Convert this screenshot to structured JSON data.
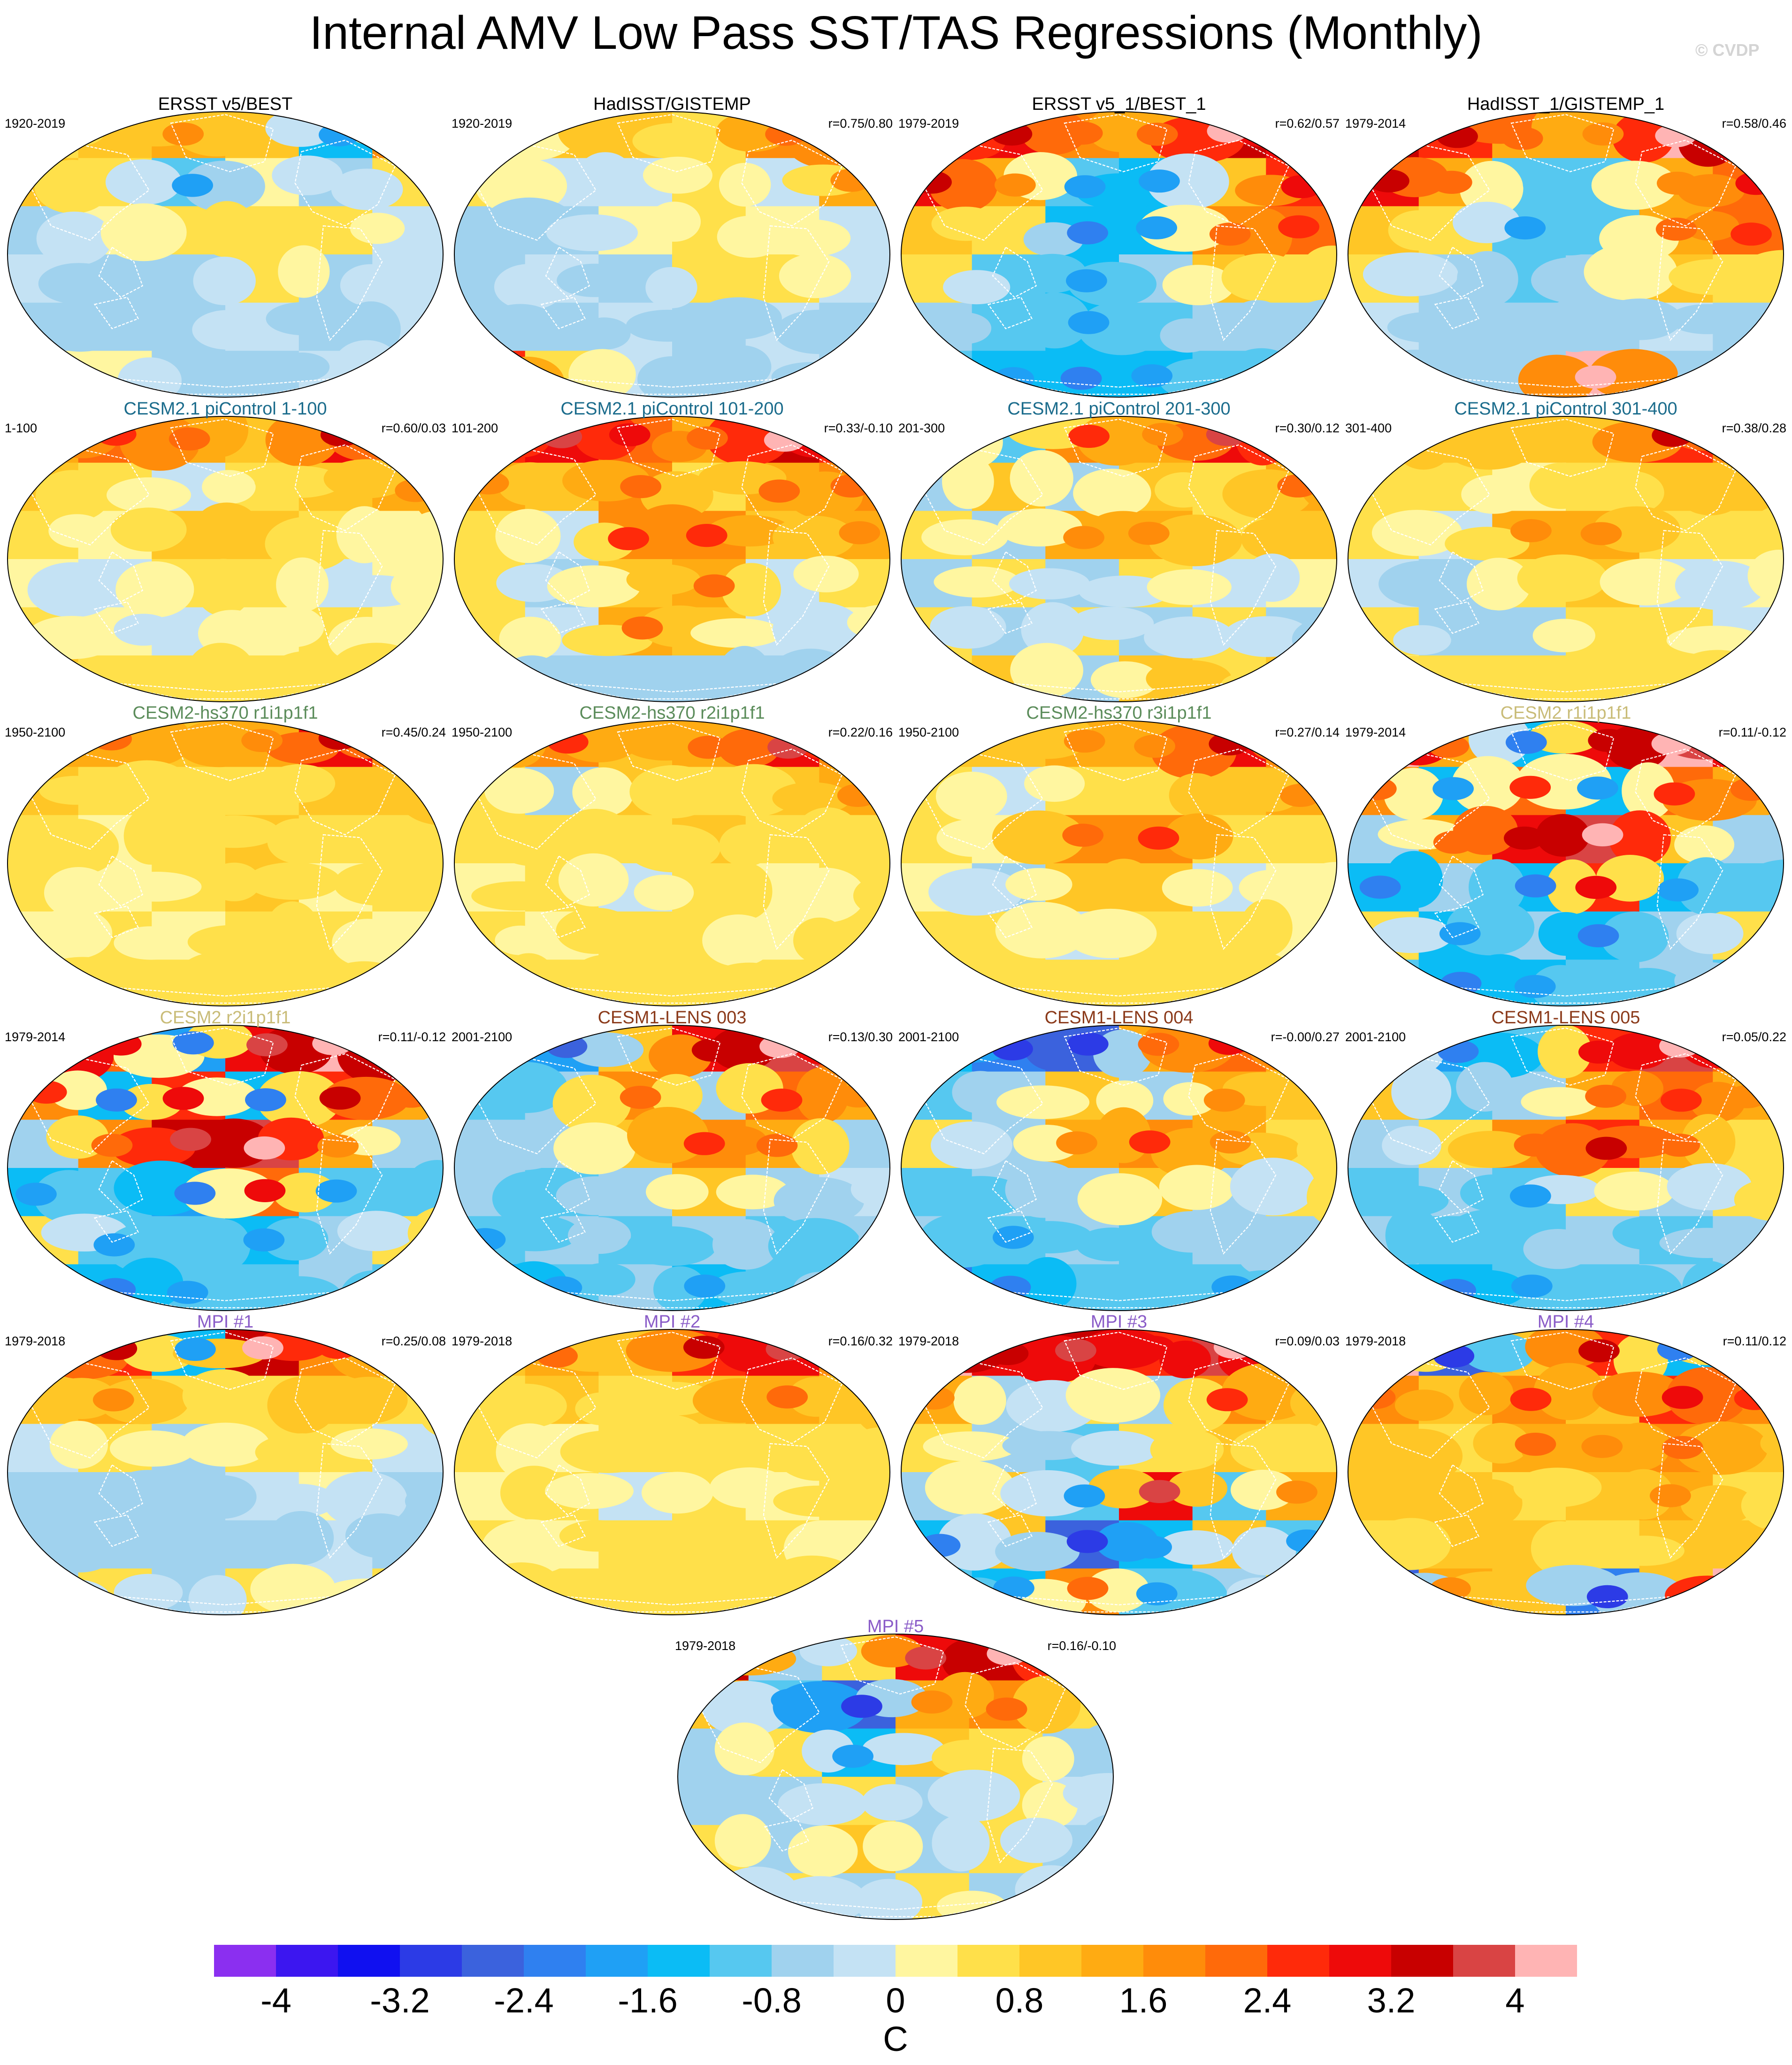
{
  "title": "Internal AMV Low Pass SST/TAS Regressions (Monthly)",
  "watermark": "© CVDP",
  "panels": [
    {
      "title": "ERSST v5/BEST",
      "title_color": "#000000",
      "period": "1920-2019",
      "corr": "",
      "pattern": [
        [
          0.6,
          0.9,
          1.3,
          1.0,
          -1.4,
          1.6
        ],
        [
          0.8,
          0.6,
          -1.2,
          0.3,
          -0.6,
          0.4
        ],
        [
          -0.6,
          0.0,
          0.6,
          0.5,
          0.6,
          -0.3
        ],
        [
          -0.4,
          -0.8,
          -0.7,
          0.5,
          -0.5,
          -0.3
        ],
        [
          -0.7,
          -0.5,
          -0.5,
          -0.3,
          -0.6,
          -0.4
        ],
        [
          0.3,
          0.0,
          -0.6,
          -0.5,
          -0.4,
          0.0
        ]
      ]
    },
    {
      "title": "HadISST/GISTEMP",
      "title_color": "#000000",
      "period": "1920-2019",
      "corr": "r=0.75/0.80",
      "pattern": [
        [
          -0.3,
          1.0,
          0.8,
          0.7,
          1.7,
          2.2
        ],
        [
          0.4,
          -0.4,
          -0.3,
          0.6,
          -0.3,
          1.3
        ],
        [
          -0.6,
          -0.5,
          0.2,
          0.4,
          0.3,
          -0.3
        ],
        [
          -0.5,
          -0.3,
          -0.6,
          0.4,
          0.5,
          -0.4
        ],
        [
          -0.5,
          -0.6,
          -0.4,
          -0.5,
          -0.4,
          -0.5
        ],
        [
          2.4,
          0.5,
          -0.4,
          -0.5,
          -0.4,
          -0.6
        ]
      ]
    },
    {
      "title": "ERSST v5_1/BEST_1",
      "title_color": "#000000",
      "period": "1979-2019",
      "corr": "r=0.62/0.57",
      "pattern": [
        [
          2.5,
          2.8,
          1.6,
          1.5,
          3.5,
          2.8
        ],
        [
          2.9,
          1.2,
          -1.2,
          -1.4,
          1.0,
          2.4
        ],
        [
          0.9,
          0.6,
          -1.6,
          -1.3,
          1.7,
          2.1
        ],
        [
          0.6,
          -1.0,
          -1.4,
          -0.8,
          0.9,
          0.6
        ],
        [
          -0.6,
          -0.9,
          -1.3,
          -1.0,
          -0.6,
          -0.8
        ],
        [
          -1.2,
          -1.4,
          -1.6,
          -1.4,
          -0.9,
          -1.0
        ]
      ]
    },
    {
      "title": "HadISST_1/GISTEMP_1",
      "title_color": "#000000",
      "period": "1979-2014",
      "corr": "r=0.58/0.46",
      "pattern": [
        [
          3.2,
          2.6,
          1.4,
          1.3,
          4.0,
          3.0
        ],
        [
          2.8,
          1.4,
          -0.9,
          -1.1,
          1.2,
          2.3
        ],
        [
          0.8,
          0.6,
          -1.2,
          -1.0,
          1.5,
          2.0
        ],
        [
          0.5,
          -0.6,
          -0.9,
          -0.6,
          0.8,
          0.5
        ],
        [
          -0.4,
          -0.6,
          -0.8,
          -0.7,
          -0.4,
          -0.5
        ],
        [
          -0.8,
          -0.6,
          -0.7,
          4.2,
          -0.6,
          -0.5
        ]
      ]
    },
    {
      "title": "CESM2.1 piControl 1-100",
      "title_color": "#1b6c8c",
      "period": "1-100",
      "corr": "r=0.60/0.03",
      "pattern": [
        [
          1.2,
          2.0,
          1.5,
          1.0,
          2.9,
          1.8
        ],
        [
          0.9,
          0.6,
          -0.3,
          0.5,
          0.9,
          1.2
        ],
        [
          0.5,
          0.2,
          0.8,
          0.9,
          0.4,
          0.3
        ],
        [
          0.3,
          -0.4,
          0.5,
          0.7,
          -0.3,
          0.2
        ],
        [
          0.4,
          0.2,
          -0.3,
          0.3,
          0.4,
          0.3
        ],
        [
          0.8,
          0.6,
          0.4,
          0.7,
          0.5,
          0.6
        ]
      ]
    },
    {
      "title": "CESM2.1 piControl 101-200",
      "title_color": "#1b6c8c",
      "period": "101-200",
      "corr": "r=0.33/-0.10",
      "pattern": [
        [
          2.4,
          3.0,
          2.2,
          1.5,
          3.4,
          2.4
        ],
        [
          1.2,
          0.8,
          1.6,
          0.6,
          1.5,
          1.6
        ],
        [
          0.5,
          -0.4,
          1.8,
          1.9,
          0.8,
          1.2
        ],
        [
          0.4,
          -0.5,
          0.9,
          1.4,
          -0.3,
          0.4
        ],
        [
          0.6,
          -0.4,
          1.5,
          0.8,
          -0.4,
          0.3
        ],
        [
          -0.8,
          -0.5,
          -0.6,
          -0.8,
          -0.7,
          -0.5
        ]
      ]
    },
    {
      "title": "CESM2.1 piControl 201-300",
      "title_color": "#1b6c8c",
      "period": "201-300",
      "corr": "r=0.30/0.12",
      "pattern": [
        [
          1.5,
          -1.0,
          1.8,
          1.3,
          3.0,
          2.0
        ],
        [
          -0.6,
          0.8,
          -0.5,
          0.9,
          0.6,
          1.4
        ],
        [
          0.6,
          -0.6,
          1.2,
          1.3,
          0.7,
          0.9
        ],
        [
          -0.5,
          0.5,
          -0.7,
          0.6,
          -0.4,
          0.3
        ],
        [
          0.5,
          -0.7,
          0.6,
          -0.8,
          0.4,
          -0.6
        ],
        [
          0.7,
          0.9,
          -0.5,
          1.0,
          0.6,
          0.8
        ]
      ]
    },
    {
      "title": "CESM2.1 piControl 301-400",
      "title_color": "#1b6c8c",
      "period": "301-400",
      "corr": "r=0.38/0.28",
      "pattern": [
        [
          0.9,
          1.1,
          1.0,
          0.8,
          2.6,
          1.6
        ],
        [
          0.6,
          0.4,
          0.3,
          0.7,
          0.8,
          1.1
        ],
        [
          0.4,
          -0.3,
          1.2,
          1.3,
          0.5,
          0.6
        ],
        [
          -0.4,
          -0.5,
          0.6,
          0.8,
          -0.3,
          0.2
        ],
        [
          0.5,
          -0.6,
          -0.5,
          0.6,
          0.4,
          -0.3
        ],
        [
          0.3,
          0.5,
          0.6,
          0.4,
          0.5,
          0.6
        ]
      ]
    },
    {
      "title": "CESM2-hs370 r1i1p1f1",
      "title_color": "#5b8c5a",
      "period": "1950-2100",
      "corr": "r=0.45/0.24",
      "pattern": [
        [
          1.4,
          1.5,
          1.1,
          1.3,
          2.8,
          1.6
        ],
        [
          0.8,
          0.5,
          0.4,
          0.6,
          0.9,
          1.0
        ],
        [
          0.5,
          0.3,
          0.6,
          0.8,
          0.7,
          0.6
        ],
        [
          0.4,
          0.2,
          0.5,
          1.0,
          0.3,
          0.5
        ],
        [
          0.3,
          0.4,
          0.3,
          0.5,
          0.4,
          0.3
        ],
        [
          0.4,
          0.5,
          0.4,
          0.6,
          0.5,
          0.4
        ]
      ]
    },
    {
      "title": "CESM2-hs370 r2i1p1f1",
      "title_color": "#5b8c5a",
      "period": "1950-2100",
      "corr": "r=0.22/0.16",
      "pattern": [
        [
          1.1,
          1.8,
          0.9,
          1.5,
          3.0,
          1.9
        ],
        [
          0.7,
          -0.5,
          1.0,
          0.4,
          0.8,
          1.2
        ],
        [
          0.5,
          0.4,
          0.6,
          0.8,
          0.5,
          0.6
        ],
        [
          0.3,
          0.6,
          -0.4,
          0.5,
          0.3,
          0.4
        ],
        [
          0.4,
          0.3,
          0.5,
          0.4,
          0.3,
          0.5
        ],
        [
          0.5,
          0.4,
          0.6,
          0.5,
          0.4,
          0.5
        ]
      ]
    },
    {
      "title": "CESM2-hs370 r3i1p1f1",
      "title_color": "#5b8c5a",
      "period": "1950-2100",
      "corr": "r=0.27/0.14",
      "pattern": [
        [
          0.8,
          1.0,
          1.2,
          1.3,
          2.9,
          1.8
        ],
        [
          0.5,
          -0.4,
          0.6,
          0.7,
          0.9,
          1.2
        ],
        [
          0.4,
          0.2,
          1.6,
          1.9,
          0.6,
          0.5
        ],
        [
          0.3,
          -0.5,
          0.8,
          1.0,
          -0.3,
          0.3
        ],
        [
          0.5,
          0.4,
          -0.3,
          0.4,
          0.5,
          0.3
        ],
        [
          0.6,
          0.5,
          0.4,
          0.6,
          0.5,
          0.4
        ]
      ]
    },
    {
      "title": "CESM2 r1i1p1f1",
      "title_color": "#c9bc78",
      "period": "1979-2014",
      "corr": "r=0.11/-0.12",
      "pattern": [
        [
          4.1,
          1.5,
          -1.6,
          2.8,
          4.2,
          3.0
        ],
        [
          1.6,
          -1.4,
          2.0,
          -1.3,
          2.0,
          1.5
        ],
        [
          -0.8,
          1.4,
          2.9,
          3.8,
          1.0,
          -0.7
        ],
        [
          -1.6,
          -0.8,
          -1.5,
          2.5,
          -1.3,
          -1.0
        ],
        [
          0.6,
          -1.4,
          -0.8,
          -1.6,
          -0.7,
          0.5
        ],
        [
          -1.2,
          -1.6,
          -1.4,
          -1.0,
          -0.7,
          -0.9
        ]
      ]
    },
    {
      "title": "CESM2 r2i1p1f1",
      "title_color": "#c9bc78",
      "period": "1979-2014",
      "corr": "r=0.11/-0.12",
      "pattern": [
        [
          4.0,
          2.2,
          -1.8,
          3.0,
          4.1,
          2.4
        ],
        [
          1.8,
          -1.5,
          2.4,
          -1.6,
          2.6,
          1.4
        ],
        [
          -0.8,
          1.6,
          3.2,
          3.9,
          1.2,
          -0.8
        ],
        [
          -1.4,
          -0.9,
          -1.7,
          2.2,
          -1.2,
          -1.0
        ],
        [
          0.5,
          -1.2,
          -0.9,
          -1.4,
          -0.6,
          0.4
        ],
        [
          -1.3,
          -1.5,
          -1.2,
          -1.0,
          -0.8,
          -0.9
        ]
      ]
    },
    {
      "title": "CESM1-LENS 003",
      "title_color": "#8b3a1a",
      "period": "2001-2100",
      "corr": "r=0.13/0.30",
      "pattern": [
        [
          -1.5,
          -2.0,
          1.0,
          2.8,
          3.6,
          2.0
        ],
        [
          -1.0,
          -0.8,
          1.6,
          -0.6,
          2.0,
          1.2
        ],
        [
          -0.6,
          -0.7,
          0.8,
          1.8,
          1.4,
          -0.5
        ],
        [
          -0.8,
          -1.0,
          -0.5,
          0.9,
          -0.6,
          -0.4
        ],
        [
          -1.2,
          -0.6,
          -1.0,
          -0.7,
          -0.9,
          -0.8
        ],
        [
          -2.0,
          -1.2,
          -0.8,
          -1.4,
          -1.0,
          -0.6
        ]
      ]
    },
    {
      "title": "CESM1-LENS 004",
      "title_color": "#8b3a1a",
      "period": "2001-2100",
      "corr": "r=-0.00/0.27",
      "pattern": [
        [
          -1.6,
          -2.4,
          -2.6,
          1.4,
          2.2,
          1.4
        ],
        [
          -0.9,
          -0.6,
          0.8,
          -0.8,
          1.2,
          0.9
        ],
        [
          0.4,
          -0.6,
          1.3,
          1.8,
          1.2,
          0.5
        ],
        [
          -1.0,
          -0.8,
          -0.6,
          0.8,
          -0.5,
          0.4
        ],
        [
          -0.7,
          -1.2,
          -0.8,
          -1.0,
          -0.6,
          -0.8
        ],
        [
          -2.2,
          -1.6,
          -1.0,
          -0.9,
          -1.2,
          -0.8
        ]
      ]
    },
    {
      "title": "CESM1-LENS 005",
      "title_color": "#8b3a1a",
      "period": "2001-2100",
      "corr": "r=0.05/0.22",
      "pattern": [
        [
          1.6,
          -1.8,
          -1.0,
          2.4,
          3.8,
          2.2
        ],
        [
          0.8,
          -1.0,
          -0.6,
          1.4,
          2.0,
          1.2
        ],
        [
          -0.7,
          0.6,
          1.6,
          2.6,
          1.4,
          0.6
        ],
        [
          -1.0,
          -0.8,
          -1.2,
          0.6,
          -0.6,
          0.4
        ],
        [
          -0.8,
          -1.0,
          -0.9,
          -0.7,
          -1.0,
          -0.6
        ],
        [
          -1.4,
          -1.6,
          -1.2,
          -1.0,
          -0.8,
          -1.2
        ]
      ]
    },
    {
      "title": "MPI #1",
      "title_color": "#8a5cc8",
      "period": "1979-2018",
      "corr": "r=0.25/0.08",
      "pattern": [
        [
          1.8,
          2.6,
          -1.4,
          3.4,
          1.8,
          0.9
        ],
        [
          0.8,
          1.2,
          0.6,
          0.5,
          1.1,
          0.7
        ],
        [
          -0.4,
          0.5,
          -0.5,
          0.6,
          0.4,
          -0.3
        ],
        [
          -0.6,
          -0.7,
          -0.5,
          -0.4,
          0.3,
          -0.5
        ],
        [
          -0.7,
          -0.5,
          -0.8,
          -0.6,
          -0.4,
          -0.6
        ],
        [
          -0.5,
          0.4,
          -0.6,
          0.5,
          -0.3,
          0.4
        ]
      ]
    },
    {
      "title": "MPI #2",
      "title_color": "#8a5cc8",
      "period": "1979-2018",
      "corr": "r=0.16/0.32",
      "pattern": [
        [
          1.0,
          1.4,
          0.8,
          2.6,
          3.0,
          1.6
        ],
        [
          0.6,
          0.8,
          0.4,
          1.0,
          1.4,
          0.8
        ],
        [
          0.4,
          0.3,
          0.6,
          0.5,
          0.7,
          0.4
        ],
        [
          0.3,
          0.5,
          -0.4,
          0.4,
          0.3,
          0.5
        ],
        [
          0.4,
          0.3,
          0.5,
          0.6,
          0.4,
          0.3
        ],
        [
          0.5,
          0.4,
          0.6,
          0.5,
          0.4,
          0.6
        ]
      ]
    },
    {
      "title": "MPI #3",
      "title_color": "#8a5cc8",
      "period": "1979-2018",
      "corr": "r=0.09/0.03",
      "pattern": [
        [
          4.1,
          2.8,
          3.2,
          2.4,
          3.6,
          2.0
        ],
        [
          1.2,
          -0.8,
          0.6,
          -0.5,
          1.8,
          1.0
        ],
        [
          0.6,
          -0.6,
          -1.0,
          0.6,
          0.8,
          0.5
        ],
        [
          -0.8,
          0.8,
          -1.2,
          3.0,
          -1.0,
          1.2
        ],
        [
          -1.6,
          1.0,
          -2.6,
          -1.4,
          0.8,
          -1.2
        ],
        [
          -1.0,
          -1.4,
          1.6,
          -1.2,
          -0.8,
          0.6
        ]
      ]
    },
    {
      "title": "MPI #4",
      "title_color": "#8a5cc8",
      "period": "1979-2018",
      "corr": "r=0.11/0.12",
      "pattern": [
        [
          4.1,
          -2.6,
          0.8,
          2.6,
          -1.6,
          2.8
        ],
        [
          1.6,
          0.8,
          1.8,
          0.9,
          2.4,
          1.8
        ],
        [
          1.0,
          0.6,
          1.4,
          1.2,
          1.6,
          1.0
        ],
        [
          0.8,
          1.0,
          0.6,
          0.9,
          1.2,
          0.7
        ],
        [
          0.6,
          0.8,
          1.0,
          0.5,
          0.9,
          0.8
        ],
        [
          -2.6,
          1.2,
          0.8,
          -2.2,
          1.0,
          4.1
        ]
      ]
    },
    {
      "title": "MPI #5",
      "title_color": "#8a5cc8",
      "period": "1979-2018",
      "corr": "r=0.16/-0.10",
      "pattern": [
        [
          3.2,
          -0.8,
          0.6,
          3.0,
          3.4,
          1.4
        ],
        [
          0.8,
          -1.2,
          -2.6,
          1.2,
          1.6,
          0.6
        ],
        [
          -0.6,
          0.6,
          -1.4,
          0.8,
          0.6,
          -0.5
        ],
        [
          -0.5,
          -0.8,
          0.4,
          -0.6,
          0.5,
          -0.4
        ],
        [
          0.6,
          -0.6,
          0.8,
          -0.5,
          0.4,
          -0.6
        ],
        [
          -0.6,
          0.5,
          -0.8,
          0.6,
          -0.5,
          0.4
        ]
      ]
    }
  ],
  "colorbar": {
    "levels": [
      -4,
      -3.6,
      -3.2,
      -2.8,
      -2.4,
      -2,
      -1.6,
      -1.2,
      -0.8,
      -0.4,
      0,
      0.4,
      0.8,
      1.2,
      1.6,
      2,
      2.4,
      2.8,
      3.2,
      3.6,
      4
    ],
    "colors": [
      "#8b2ff0",
      "#3c16f0",
      "#1010f0",
      "#2c3be6",
      "#3b62dd",
      "#2f80f0",
      "#1fa0f5",
      "#0bbcf5",
      "#56c8f0",
      "#a0d2ee",
      "#c4e2f4",
      "#fff6a0",
      "#ffe04a",
      "#ffc626",
      "#ffab12",
      "#ff8c0a",
      "#ff6a0a",
      "#ff2a0a",
      "#ee0a0a",
      "#c80000",
      "#d94444",
      "#ffb4b4"
    ],
    "tick_labels": [
      "-4",
      "-3.2",
      "-2.4",
      "-1.6",
      "-0.8",
      "0",
      "0.8",
      "1.6",
      "2.4",
      "3.2",
      "4"
    ],
    "unit": "C"
  }
}
